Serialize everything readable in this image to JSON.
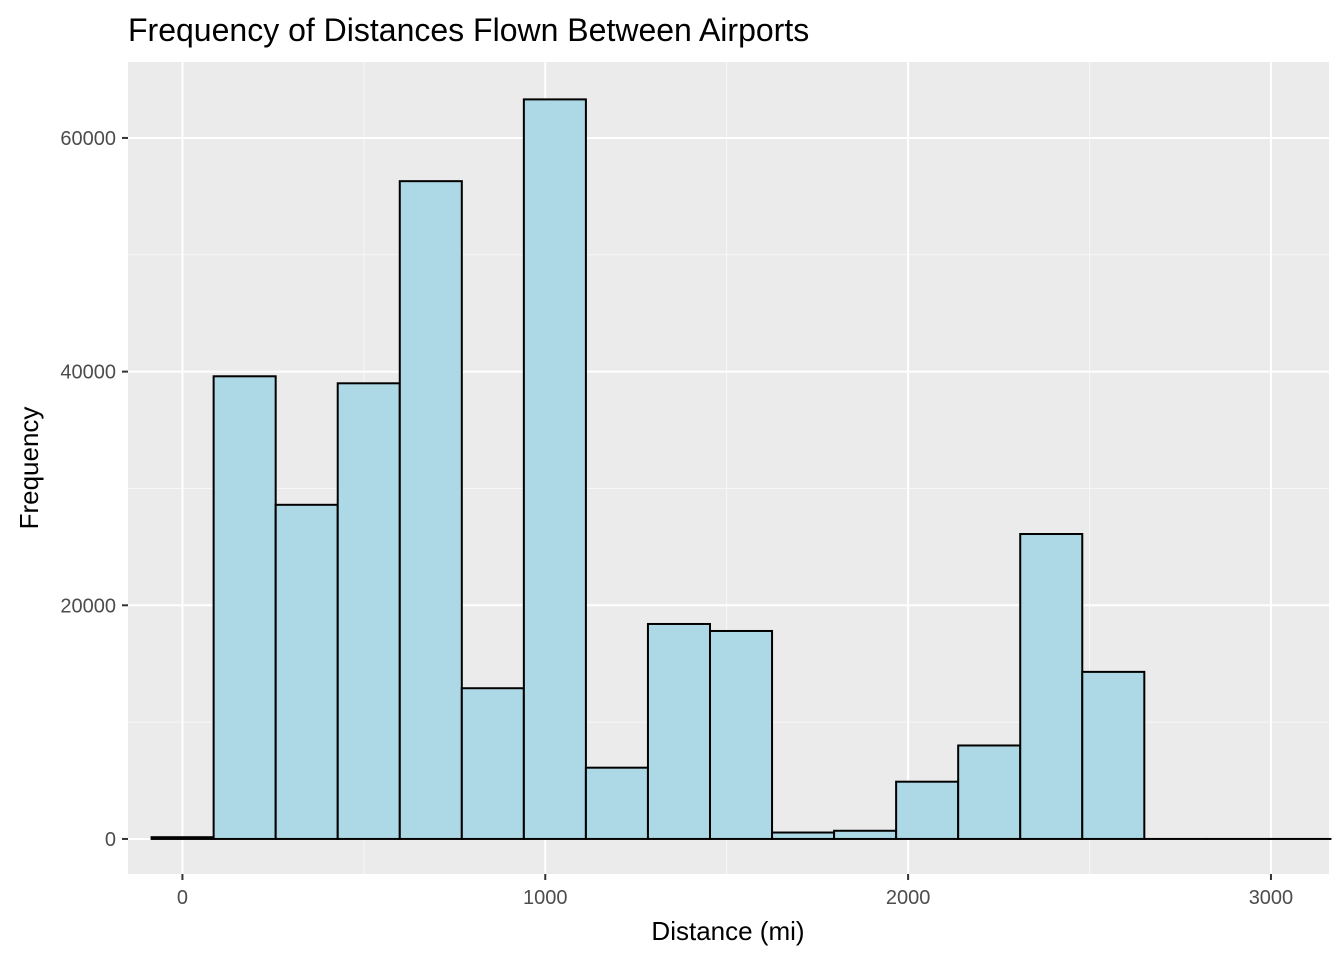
{
  "chart_data": {
    "type": "bar",
    "title": "Frequency of Distances Flown Between Airports",
    "xlabel": "Distance (mi)",
    "ylabel": "Frequency",
    "bin_width": 171,
    "bins": [
      {
        "x_start": -85,
        "x_end": 86,
        "count": 150
      },
      {
        "x_start": 86,
        "x_end": 257,
        "count": 39600
      },
      {
        "x_start": 257,
        "x_end": 428,
        "count": 28600
      },
      {
        "x_start": 428,
        "x_end": 599,
        "count": 39000
      },
      {
        "x_start": 599,
        "x_end": 770,
        "count": 56300
      },
      {
        "x_start": 770,
        "x_end": 941,
        "count": 12900
      },
      {
        "x_start": 941,
        "x_end": 1112,
        "count": 63300
      },
      {
        "x_start": 1112,
        "x_end": 1283,
        "count": 6100
      },
      {
        "x_start": 1283,
        "x_end": 1454,
        "count": 18400
      },
      {
        "x_start": 1454,
        "x_end": 1625,
        "count": 17800
      },
      {
        "x_start": 1625,
        "x_end": 1796,
        "count": 550
      },
      {
        "x_start": 1796,
        "x_end": 1967,
        "count": 700
      },
      {
        "x_start": 1967,
        "x_end": 2138,
        "count": 4900
      },
      {
        "x_start": 2138,
        "x_end": 2309,
        "count": 8000
      },
      {
        "x_start": 2309,
        "x_end": 2480,
        "count": 26100
      },
      {
        "x_start": 2480,
        "x_end": 2651,
        "count": 14300
      },
      {
        "x_start": 2651,
        "x_end": 2822,
        "count": 0
      },
      {
        "x_start": 2822,
        "x_end": 2993,
        "count": 0
      },
      {
        "x_start": 2993,
        "x_end": 3164,
        "count": 0
      }
    ],
    "x_ticks": [
      0,
      1000,
      2000,
      3000
    ],
    "y_ticks": [
      0,
      20000,
      40000,
      60000
    ],
    "xlim": [
      -150,
      3160
    ],
    "ylim": [
      -3000,
      66500
    ],
    "grid": true,
    "colors": {
      "panel_background": "#ebebeb",
      "grid_major": "#ffffff",
      "grid_minor": "#f7f7f7",
      "bar_fill": "#add8e6",
      "bar_outline": "#000000"
    }
  }
}
